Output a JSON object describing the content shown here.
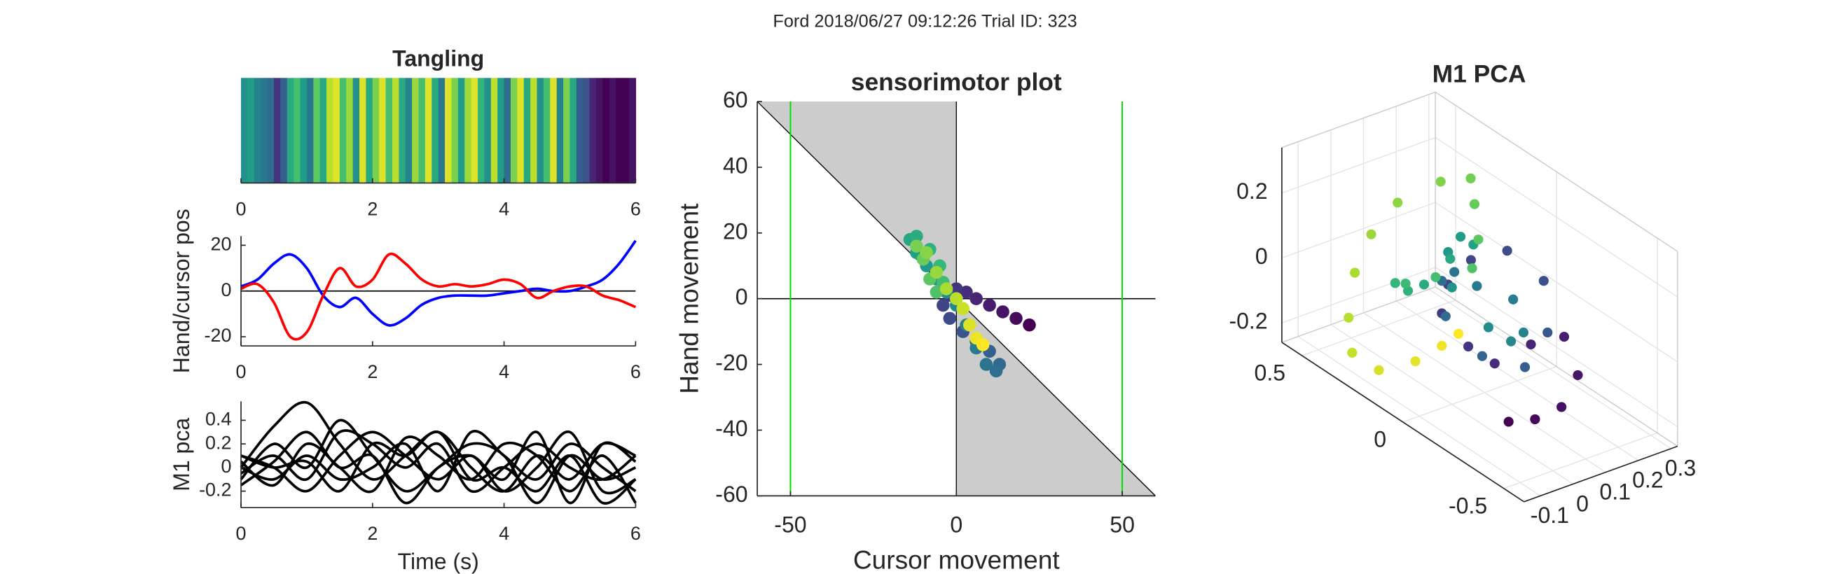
{
  "figure_title": "Ford 2018/06/27 09:12:26 Trial ID: 323",
  "chart_data": [
    {
      "type": "heatmap",
      "title": "Tangling",
      "colormap": "viridis",
      "values": [
        0.5,
        0.55,
        0.45,
        0.4,
        0.35,
        0.15,
        0.3,
        0.6,
        0.7,
        0.55,
        0.4,
        0.75,
        0.6,
        0.9,
        0.95,
        0.7,
        0.85,
        0.5,
        0.95,
        0.6,
        0.8,
        0.95,
        0.7,
        0.9,
        0.6,
        0.45,
        0.85,
        0.7,
        0.95,
        0.6,
        0.4,
        0.95,
        0.8,
        0.55,
        0.85,
        0.95,
        0.65,
        0.5,
        0.9,
        0.55,
        0.35,
        0.8,
        0.95,
        0.6,
        0.9,
        0.5,
        0.7,
        0.95,
        0.45,
        0.8,
        0.6,
        0.3,
        0.25,
        0.1,
        0.05,
        0.0,
        0.05,
        0.0,
        0.0,
        0.05
      ],
      "xlim": [
        0,
        6
      ],
      "xticks": [
        0,
        2,
        4,
        6
      ]
    },
    {
      "type": "line",
      "ylabel": "Hand/cursor pos",
      "x": [
        0,
        0.25,
        0.5,
        0.75,
        1,
        1.25,
        1.5,
        1.75,
        2,
        2.25,
        2.5,
        2.75,
        3,
        3.25,
        3.5,
        3.75,
        4,
        4.25,
        4.5,
        4.75,
        5,
        5.25,
        5.5,
        5.75,
        6
      ],
      "series": [
        {
          "color": "#0000ff",
          "values": [
            2,
            5,
            12,
            16,
            10,
            -2,
            -7,
            -3,
            -10,
            -15,
            -12,
            -6,
            -3,
            -2,
            -2,
            -2,
            -1,
            0,
            1,
            0,
            0,
            2,
            5,
            12,
            22
          ]
        },
        {
          "color": "#ff0000",
          "values": [
            1,
            3,
            -5,
            -20,
            -18,
            -2,
            10,
            2,
            5,
            16,
            12,
            5,
            2,
            3,
            2,
            3,
            5,
            3,
            -3,
            0,
            2,
            2,
            -2,
            -4,
            -7
          ]
        }
      ],
      "xlim": [
        0,
        6
      ],
      "xticks": [
        0,
        2,
        4,
        6
      ],
      "ylim": [
        -24,
        24
      ],
      "yticks": [
        -20,
        0,
        20
      ]
    },
    {
      "type": "line",
      "ylabel": "M1 pca",
      "xlabel": "Time (s)",
      "x": [
        0,
        0.5,
        1,
        1.5,
        2,
        2.5,
        3,
        3.5,
        4,
        4.5,
        5,
        5.5,
        6
      ],
      "series": [
        {
          "color": "#000000",
          "values": [
            0.0,
            0.35,
            0.55,
            0.2,
            -0.1,
            0.1,
            0.3,
            0.0,
            -0.2,
            0.1,
            -0.1,
            0.2,
            0.1
          ]
        },
        {
          "color": "#000000",
          "values": [
            -0.1,
            0.2,
            0.0,
            0.4,
            0.1,
            -0.2,
            0.0,
            0.2,
            0.1,
            -0.3,
            0.1,
            -0.1,
            0.0
          ]
        },
        {
          "color": "#000000",
          "values": [
            0.1,
            0.0,
            -0.2,
            0.1,
            0.3,
            0.1,
            -0.1,
            0.1,
            -0.2,
            0.0,
            0.3,
            -0.2,
            -0.1
          ]
        },
        {
          "color": "#000000",
          "values": [
            0.05,
            -0.15,
            0.2,
            0.0,
            -0.2,
            0.25,
            0.1,
            -0.1,
            0.2,
            0.1,
            -0.2,
            0.1,
            -0.3
          ]
        },
        {
          "color": "#000000",
          "values": [
            -0.05,
            0.1,
            -0.1,
            0.3,
            0.2,
            0.0,
            0.2,
            -0.2,
            0.0,
            0.2,
            0.0,
            -0.1,
            0.1
          ]
        },
        {
          "color": "#000000",
          "values": [
            0.0,
            -0.1,
            0.1,
            -0.1,
            0.0,
            0.2,
            -0.2,
            0.3,
            0.1,
            -0.1,
            0.2,
            0.0,
            -0.2
          ]
        },
        {
          "color": "#000000",
          "values": [
            -0.15,
            0.05,
            0.3,
            0.0,
            0.1,
            -0.3,
            0.0,
            0.1,
            -0.1,
            0.3,
            -0.3,
            0.2,
            0.05
          ]
        },
        {
          "color": "#000000",
          "values": [
            0.1,
            0.0,
            0.05,
            -0.2,
            0.2,
            0.1,
            0.3,
            -0.1,
            0.0,
            -0.2,
            0.1,
            -0.3,
            -0.1
          ]
        }
      ],
      "xlim": [
        0,
        6
      ],
      "xticks": [
        0,
        2,
        4,
        6
      ],
      "ylim": [
        -0.34,
        0.56
      ],
      "yticks": [
        -0.2,
        0,
        0.2,
        0.4
      ]
    },
    {
      "type": "scatter",
      "title": "sensorimotor plot",
      "xlabel": "Cursor movement",
      "ylabel": "Hand movement",
      "colormap": "viridis",
      "target_lines": [
        -50,
        50
      ],
      "target_color": "#00e000",
      "x": [
        22,
        18,
        14,
        10,
        6,
        3,
        0,
        -2,
        -4,
        -2,
        2,
        6,
        10,
        13,
        12,
        9,
        6,
        3,
        0,
        -3,
        -6,
        -9,
        -12,
        -14,
        -12,
        -8,
        -5,
        -4,
        -6,
        -8,
        -10,
        -12,
        -9,
        -6,
        -3,
        0,
        2,
        4,
        6,
        8
      ],
      "values": [
        -8,
        -6,
        -4,
        -2,
        0,
        2,
        3,
        1,
        -2,
        -6,
        -10,
        -13,
        -16,
        -20,
        -22,
        -20,
        -15,
        -8,
        -2,
        2,
        6,
        10,
        14,
        18,
        19,
        15,
        10,
        5,
        2,
        6,
        12,
        16,
        14,
        8,
        3,
        0,
        -3,
        -8,
        -12,
        -14
      ],
      "xlim": [
        -60,
        60
      ],
      "xticks": [
        -50,
        0,
        50
      ],
      "ylim": [
        -60,
        60
      ],
      "yticks": [
        -60,
        -40,
        -20,
        0,
        20,
        40,
        60
      ]
    },
    {
      "type": "scatter3d",
      "title": "M1 PCA",
      "colormap": "viridis",
      "x": [
        0.05,
        0.1,
        0.15,
        0.2,
        0.22,
        0.18,
        0.1,
        0.05,
        0.0,
        0.05,
        0.12,
        0.2,
        0.25,
        0.2,
        0.1,
        0.0,
        -0.05,
        0.0,
        0.1,
        0.2,
        0.28,
        0.25,
        0.15,
        0.05,
        0.0,
        0.05,
        0.15,
        0.22,
        0.18,
        0.1,
        0.02,
        -0.05,
        -0.08,
        -0.05,
        0.0,
        0.05,
        0.1,
        0.15,
        0.12,
        0.05,
        0.0,
        -0.05,
        -0.1,
        -0.12,
        -0.1,
        -0.05,
        0.0,
        0.02
      ],
      "y": [
        -0.2,
        -0.25,
        -0.3,
        -0.3,
        -0.2,
        -0.1,
        -0.05,
        0.0,
        0.05,
        0.1,
        0.1,
        0.05,
        -0.05,
        -0.15,
        -0.2,
        -0.15,
        -0.05,
        0.05,
        0.15,
        0.2,
        0.15,
        0.05,
        -0.05,
        -0.1,
        0.0,
        0.1,
        0.2,
        0.25,
        0.3,
        0.3,
        0.25,
        0.2,
        0.1,
        0.0,
        -0.1,
        -0.05,
        0.05,
        0.15,
        0.25,
        0.35,
        0.4,
        0.4,
        0.35,
        0.3,
        0.2,
        0.1,
        0.05,
        0.0
      ],
      "z": [
        -0.25,
        -0.24,
        -0.2,
        -0.12,
        -0.05,
        -0.1,
        -0.15,
        -0.1,
        0.0,
        0.05,
        0.1,
        0.12,
        0.05,
        -0.05,
        -0.1,
        -0.05,
        0.05,
        0.1,
        0.05,
        -0.05,
        -0.1,
        -0.15,
        -0.1,
        0.0,
        0.1,
        0.15,
        0.12,
        0.05,
        0.0,
        -0.05,
        -0.02,
        0.05,
        0.1,
        0.15,
        0.2,
        0.25,
        0.3,
        0.32,
        0.28,
        0.2,
        0.1,
        0.0,
        -0.1,
        -0.18,
        -0.2,
        -0.15,
        -0.1,
        -0.05
      ],
      "xlim": [
        -0.15,
        0.32
      ],
      "xticks": [
        -0.1,
        0,
        0.1,
        0.2,
        0.3
      ],
      "ylim": [
        -0.6,
        0.6
      ],
      "yticks": [
        -0.5,
        0,
        0.5
      ],
      "zlim": [
        -0.26,
        0.34
      ],
      "zticks": [
        -0.2,
        0,
        0.2
      ]
    }
  ]
}
